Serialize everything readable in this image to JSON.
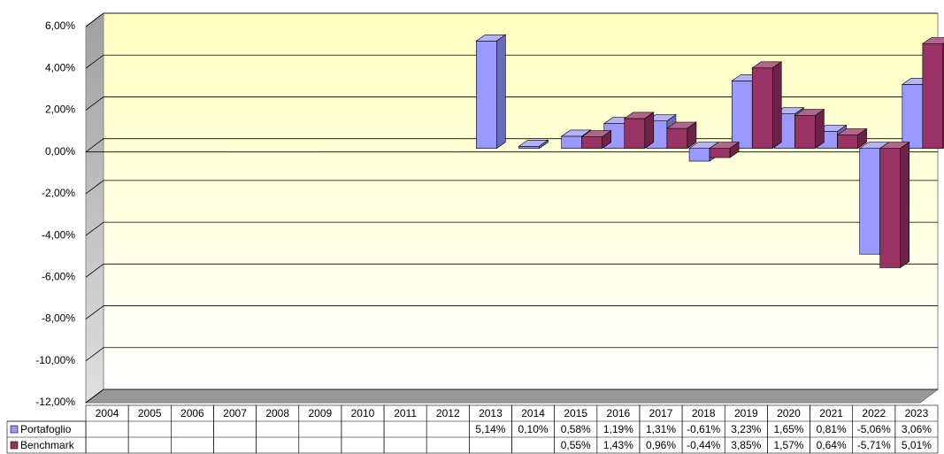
{
  "chart_data": {
    "type": "bar3d",
    "categories": [
      "2004",
      "2005",
      "2006",
      "2007",
      "2008",
      "2009",
      "2010",
      "2011",
      "2012",
      "2013",
      "2014",
      "2015",
      "2016",
      "2017",
      "2018",
      "2019",
      "2020",
      "2021",
      "2022",
      "2023"
    ],
    "series": [
      {
        "name": "Portafoglio",
        "color": "#9999ff",
        "values": [
          null,
          null,
          null,
          null,
          null,
          null,
          null,
          null,
          null,
          5.14,
          0.1,
          0.58,
          1.19,
          1.31,
          -0.61,
          3.23,
          1.65,
          0.81,
          -5.06,
          3.06
        ],
        "value_labels": [
          null,
          null,
          null,
          null,
          null,
          null,
          null,
          null,
          null,
          "5,14%",
          "0,10%",
          "0,58%",
          "1,19%",
          "1,31%",
          "-0,61%",
          "3,23%",
          "1,65%",
          "0,81%",
          "-5,06%",
          "3,06%"
        ]
      },
      {
        "name": "Benchmark",
        "color": "#993366",
        "values": [
          null,
          null,
          null,
          null,
          null,
          null,
          null,
          null,
          null,
          null,
          null,
          0.55,
          1.43,
          0.96,
          -0.44,
          3.85,
          1.57,
          0.64,
          -5.71,
          5.01
        ],
        "value_labels": [
          null,
          null,
          null,
          null,
          null,
          null,
          null,
          null,
          null,
          null,
          null,
          "0,55%",
          "1,43%",
          "0,96%",
          "-0,44%",
          "3,85%",
          "1,57%",
          "0,64%",
          "-5,71%",
          "5,01%"
        ]
      }
    ],
    "ylim": [
      -12,
      6
    ],
    "yticks": [
      {
        "value": -12,
        "label": "-12,00%"
      },
      {
        "value": -10,
        "label": "-10,00%"
      },
      {
        "value": -8,
        "label": "-8,00%"
      },
      {
        "value": -6,
        "label": "-6,00%"
      },
      {
        "value": -4,
        "label": "-4,00%"
      },
      {
        "value": -2,
        "label": "-2,00%"
      },
      {
        "value": 0,
        "label": "0,00%"
      },
      {
        "value": 2,
        "label": "2,00%"
      },
      {
        "value": 4,
        "label": "4,00%"
      },
      {
        "value": 6,
        "label": "6,00%"
      }
    ],
    "grid": true
  }
}
